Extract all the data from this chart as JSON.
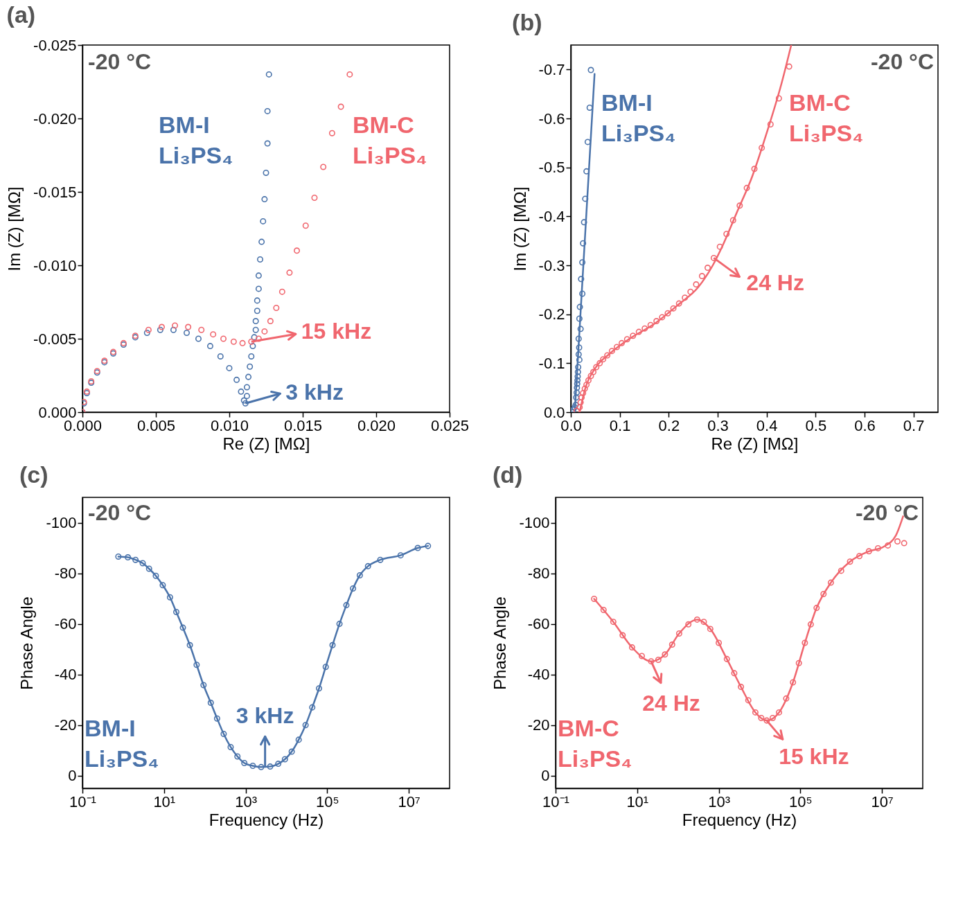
{
  "chart_data": [
    {
      "type": "scatter",
      "title": "(a)",
      "xlabel": "Re (Z) [MΩ]",
      "ylabel": "Im (Z) [MΩ]",
      "marker": "circle",
      "xlim": [
        0,
        0.025
      ],
      "ylim": [
        0,
        -0.025
      ],
      "xticks": [
        {
          "value": 0,
          "label": "0.000"
        },
        {
          "value": 0.005,
          "label": "0.005"
        },
        {
          "value": 0.01,
          "label": "0.010"
        },
        {
          "value": 0.015,
          "label": "0.015"
        },
        {
          "value": 0.02,
          "label": "0.020"
        },
        {
          "value": 0.025,
          "label": "0.025"
        }
      ],
      "yticks": [
        {
          "value": 0,
          "label": "0.000"
        },
        {
          "value": -0.005,
          "label": "-0.005"
        },
        {
          "value": -0.01,
          "label": "-0.010"
        },
        {
          "value": -0.015,
          "label": "-0.015"
        },
        {
          "value": -0.02,
          "label": "-0.020"
        },
        {
          "value": -0.025,
          "label": "-0.025"
        }
      ],
      "series": [
        {
          "name": "BM-I Li₃PS₄",
          "color": "#4a73aa",
          "x": [
            0,
            0.0001,
            0.0003,
            0.0006,
            0.001,
            0.0015,
            0.0021,
            0.0028,
            0.0036,
            0.0044,
            0.0053,
            0.0062,
            0.0071,
            0.0079,
            0.0087,
            0.0094,
            0.01,
            0.0105,
            0.0108,
            0.011,
            0.0111,
            0.0112,
            0.0112,
            0.0113,
            0.0114,
            0.0115,
            0.0116,
            0.0117,
            0.0118,
            0.0118,
            0.0119,
            0.0119,
            0.012,
            0.012,
            0.0121,
            0.0122,
            0.0123,
            0.0124,
            0.0125,
            0.0126,
            0.0126,
            0.0127
          ],
          "values": [
            0,
            -0.0006,
            -0.0013,
            -0.002,
            -0.0027,
            -0.0034,
            -0.004,
            -0.0046,
            -0.0051,
            -0.0054,
            -0.0056,
            -0.0056,
            -0.0054,
            -0.005,
            -0.0045,
            -0.0038,
            -0.003,
            -0.0022,
            -0.0014,
            -0.0008,
            -0.0006,
            -0.0011,
            -0.0017,
            -0.0024,
            -0.0031,
            -0.0038,
            -0.0045,
            -0.0051,
            -0.0056,
            -0.0062,
            -0.0069,
            -0.0076,
            -0.0084,
            -0.0093,
            -0.0104,
            -0.0116,
            -0.013,
            -0.0145,
            -0.0163,
            -0.0183,
            -0.0205,
            -0.023
          ]
        },
        {
          "name": "BM-C Li₃PS₄",
          "color": "#f0666e",
          "x": [
            0,
            0.0001,
            0.0003,
            0.0006,
            0.001,
            0.0015,
            0.0021,
            0.0028,
            0.0036,
            0.0045,
            0.0054,
            0.0063,
            0.0072,
            0.0081,
            0.0089,
            0.0096,
            0.0103,
            0.0109,
            0.0115,
            0.012,
            0.0124,
            0.0128,
            0.0132,
            0.0136,
            0.0141,
            0.0146,
            0.0152,
            0.0158,
            0.0164,
            0.017,
            0.0176,
            0.0182
          ],
          "values": [
            0,
            -0.0007,
            -0.0014,
            -0.0021,
            -0.0028,
            -0.0035,
            -0.0041,
            -0.0047,
            -0.0052,
            -0.0056,
            -0.0058,
            -0.0059,
            -0.0058,
            -0.0056,
            -0.0053,
            -0.005,
            -0.0048,
            -0.0047,
            -0.0048,
            -0.005,
            -0.0055,
            -0.0062,
            -0.0071,
            -0.0082,
            -0.0095,
            -0.011,
            -0.0127,
            -0.0146,
            -0.0167,
            -0.019,
            -0.0208,
            -0.023
          ]
        }
      ],
      "annotations": [
        "-20 °C",
        {
          "text": "15 kHz",
          "x": 0.0115,
          "y": -0.0048
        },
        {
          "text": "3 kHz",
          "x": 0.0111,
          "y": -0.0006
        }
      ]
    },
    {
      "type": "scatter",
      "title": "(b)",
      "xlabel": "Re (Z) [MΩ]",
      "ylabel": "Im (Z) [MΩ]",
      "xlim": [
        0,
        0.75
      ],
      "ylim": [
        0,
        -0.75
      ],
      "xticks": [
        {
          "value": 0,
          "label": "0.0"
        },
        0.1,
        0.2,
        0.3,
        0.4,
        0.5,
        0.6,
        0.7
      ],
      "yticks": [
        {
          "value": 0,
          "label": "0.0"
        },
        -0.1,
        -0.2,
        -0.3,
        -0.4,
        -0.5,
        -0.6,
        -0.7
      ],
      "series": [
        {
          "name": "BM-I Li₃PS₄",
          "color": "#4a73aa",
          "marker": "circle",
          "x": [
            0.002,
            0.005,
            0.008,
            0.01,
            0.011,
            0.012,
            0.0125,
            0.013,
            0.0135,
            0.014,
            0.0145,
            0.015,
            0.0175,
            0.016,
            0.017,
            0.016,
            0.02,
            0.0175,
            0.0185,
            0.0235,
            0.021,
            0.0235,
            0.025,
            0.027,
            0.0295,
            0.032,
            0.0345,
            0.0385,
            0.041
          ],
          "values": [
            0,
            -0.005,
            -0.01,
            -0.015,
            -0.03,
            -0.04,
            -0.05,
            -0.058,
            -0.065,
            -0.073,
            -0.082,
            -0.092,
            -0.107,
            -0.118,
            -0.132,
            -0.15,
            -0.17,
            -0.191,
            -0.215,
            -0.242,
            -0.272,
            -0.306,
            -0.345,
            -0.388,
            -0.436,
            -0.492,
            -0.552,
            -0.622,
            -0.699
          ]
        },
        {
          "type": "line",
          "color": "#4a73aa",
          "x": [
            0.008,
            0.0485
          ],
          "values": [
            0,
            -0.691
          ]
        },
        {
          "name": "BM-C Li₃PS₄",
          "color": "#f0666e",
          "marker": "circle",
          "x": [
            0.012,
            0.018,
            0.02,
            0.022,
            0.025,
            0.0285,
            0.032,
            0.036,
            0.041,
            0.046,
            0.052,
            0.059,
            0.066,
            0.0745,
            0.084,
            0.094,
            0.104,
            0.115,
            0.127,
            0.139,
            0.151,
            0.163,
            0.175,
            0.1865,
            0.198,
            0.2095,
            0.221,
            0.233,
            0.2445,
            0.256,
            0.268,
            0.2795,
            0.292,
            0.3045,
            0.318,
            0.3315,
            0.345,
            0.3595,
            0.375,
            0.39,
            0.408,
            0.425,
            0.446
          ],
          "values": [
            -0.003,
            -0.01,
            -0.02,
            -0.03,
            -0.039,
            -0.048,
            -0.056,
            -0.065,
            -0.074,
            -0.082,
            -0.092,
            -0.1,
            -0.108,
            -0.116,
            -0.125,
            -0.133,
            -0.141,
            -0.149,
            -0.156,
            -0.164,
            -0.171,
            -0.178,
            -0.186,
            -0.194,
            -0.202,
            -0.212,
            -0.222,
            -0.234,
            -0.246,
            -0.261,
            -0.278,
            -0.295,
            -0.315,
            -0.338,
            -0.364,
            -0.392,
            -0.422,
            -0.458,
            -0.497,
            -0.54,
            -0.588,
            -0.641,
            -0.706
          ]
        },
        {
          "type": "line",
          "color": "#f0666e",
          "x": [
            0.018,
            0.03,
            0.05,
            0.08,
            0.12,
            0.17,
            0.22,
            0.26,
            0.29,
            0.31,
            0.34,
            0.37,
            0.4,
            0.43,
            0.45
          ],
          "values": [
            0,
            -0.05,
            -0.09,
            -0.12,
            -0.15,
            -0.18,
            -0.22,
            -0.255,
            -0.3,
            -0.34,
            -0.41,
            -0.48,
            -0.57,
            -0.67,
            -0.749
          ]
        }
      ],
      "annotations": [
        "-20 °C",
        {
          "text": "24 Hz",
          "x": 0.292,
          "y": -0.315
        }
      ]
    },
    {
      "type": "line",
      "title": "(c)",
      "xlabel": "Frequency (Hz)",
      "ylabel": "Phase Angle",
      "log": "x",
      "xlim": [
        0.1,
        100000000
      ],
      "ylim": [
        5,
        -110
      ],
      "xticks": [
        {
          "value": 0.1,
          "label": "10⁻¹"
        },
        {
          "value": 10,
          "label": "10¹"
        },
        {
          "value": 1000,
          "label": "10³"
        },
        {
          "value": 100000,
          "label": "10⁵"
        },
        {
          "value": 10000000,
          "label": "10⁷"
        }
      ],
      "yticks": [
        0,
        -20,
        -40,
        -60,
        -80,
        -100
      ],
      "series": [
        {
          "name": "BM-I Li₃PS₄",
          "color": "#4a73aa",
          "marker": "circle",
          "x": [
            0.76,
            1.3,
            2,
            3,
            4.3,
            6.3,
            9.3,
            14,
            20,
            29,
            43,
            63,
            93,
            140,
            200,
            290,
            430,
            630,
            930,
            1500,
            2400,
            4000,
            6300,
            9200,
            13500,
            20000,
            29500,
            43000,
            63000,
            92000,
            135000,
            200000,
            295000,
            430000,
            630000,
            1000000,
            2000000,
            6300000,
            16600000,
            29500000
          ],
          "values": [
            -86.6,
            -86.3,
            -85.3,
            -84,
            -81.8,
            -79,
            -75.3,
            -70.5,
            -64.7,
            -58.5,
            -51.6,
            -43.8,
            -35.8,
            -28.8,
            -22.6,
            -16.5,
            -11.3,
            -7.6,
            -5,
            -3.9,
            -3.4,
            -3.6,
            -4.7,
            -6.5,
            -9.5,
            -14.2,
            -20,
            -27,
            -34.5,
            -43,
            -51.6,
            -60,
            -67.4,
            -74,
            -79.2,
            -82.8,
            -85.3,
            -87.1,
            -90,
            -90.8
          ]
        }
      ],
      "annotations": [
        "-20 °C",
        {
          "text": "3 kHz",
          "x": 3000,
          "y": -3.4
        }
      ]
    },
    {
      "type": "scatter",
      "title": "(d)",
      "xlabel": "Frequency (Hz)",
      "ylabel": "Phase Angle",
      "log": "x",
      "xlim": [
        0.1,
        100000000
      ],
      "ylim": [
        5,
        -110
      ],
      "xticks": [
        {
          "value": 0.1,
          "label": "10⁻¹"
        },
        {
          "value": 10,
          "label": "10¹"
        },
        {
          "value": 1000,
          "label": "10³"
        },
        {
          "value": 100000,
          "label": "10⁵"
        },
        {
          "value": 10000000,
          "label": "10⁷"
        }
      ],
      "yticks": [
        0,
        -20,
        -40,
        -60,
        -80,
        -100
      ],
      "series": [
        {
          "name": "BM-C Li₃PS₄",
          "color": "#f0666e",
          "marker": "circle",
          "x": [
            0.88,
            1.5,
            2.6,
            4.4,
            7.5,
            13,
            22,
            33,
            48,
            72,
            107,
            180,
            295,
            430,
            620,
            1000,
            1580,
            2400,
            3500,
            5300,
            7900,
            11000,
            15000,
            21000,
            30000,
            45000,
            66000,
            92000,
            129000,
            180000,
            250000,
            370000,
            560000,
            1000000,
            1650000,
            2800000,
            4800000,
            8000000,
            14000000,
            24000000,
            35000000
          ],
          "values": [
            -69.9,
            -65.5,
            -60.8,
            -55.5,
            -50.7,
            -47.3,
            -45.2,
            -45.8,
            -47.9,
            -51.8,
            -56.2,
            -59.8,
            -61.7,
            -60.8,
            -58,
            -52.5,
            -46.1,
            -40.5,
            -35.1,
            -29.8,
            -25,
            -22.8,
            -21.8,
            -22.8,
            -25,
            -30.5,
            -36.9,
            -44.5,
            -52.5,
            -59.8,
            -66.3,
            -71.8,
            -76.3,
            -81,
            -84.6,
            -86.8,
            -88.7,
            -89.9,
            -91,
            -92.6,
            -91.9
          ]
        },
        {
          "type": "line",
          "color": "#f0666e",
          "x": [
            0.88,
            2.6,
            7.5,
            22,
            48,
            107,
            295,
            620,
            1580,
            3500,
            7900,
            15000,
            30000,
            66000,
            129000,
            250000,
            560000,
            1650000,
            4800000,
            11000000,
            22000000,
            33000000
          ],
          "values": [
            -69.9,
            -60.8,
            -50.7,
            -45.2,
            -47.9,
            -56.2,
            -61.7,
            -58,
            -46.1,
            -35.1,
            -25,
            -21.8,
            -25,
            -36.9,
            -52.5,
            -66.3,
            -76.3,
            -84.6,
            -88.7,
            -90.5,
            -95,
            -102.5
          ]
        }
      ],
      "annotations": [
        "-20 °C",
        {
          "text": "24 Hz",
          "x": 22,
          "y": -45.2
        },
        {
          "text": "15 kHz",
          "x": 15000,
          "y": -21.8
        }
      ]
    }
  ]
}
